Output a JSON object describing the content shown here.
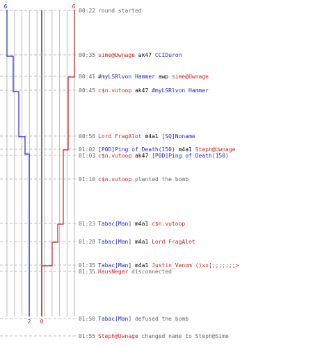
{
  "colors": {
    "ct": "#2222cc",
    "t": "#cc2222",
    "grey": "#666666",
    "black": "#000000",
    "time": "#666666",
    "grid": "#bbbbbb",
    "dash": "#bbbbbb",
    "axis": "#444444"
  },
  "scoreboard": {
    "ct_start": "6",
    "t_start": "6",
    "ct_end": "2",
    "t_end": "0"
  },
  "timeline": [
    {
      "time": "00:22",
      "parts": [
        {
          "t": "round started",
          "c": "grey"
        }
      ]
    },
    {
      "time": "00:35",
      "parts": [
        {
          "t": "sime@Uwnage",
          "c": "t"
        },
        {
          "t": " ak47 ",
          "c": "black"
        },
        {
          "t": "CCIDuron",
          "c": "ct"
        }
      ]
    },
    {
      "time": "00:41",
      "parts": [
        {
          "t": "#myLSRlvon Hammer",
          "c": "ct"
        },
        {
          "t": " awp ",
          "c": "black"
        },
        {
          "t": "sime@Uwnage",
          "c": "t"
        }
      ]
    },
    {
      "time": "00:45",
      "parts": [
        {
          "t": "c$n.vutoop",
          "c": "t"
        },
        {
          "t": " ak47 ",
          "c": "black"
        },
        {
          "t": "#myLSRlvon Hammer",
          "c": "ct"
        }
      ]
    },
    {
      "time": "00:58",
      "parts": [
        {
          "t": "Lord FragAlot",
          "c": "t"
        },
        {
          "t": " m4a1 ",
          "c": "black"
        },
        {
          "t": "[SQ]Noname",
          "c": "ct"
        }
      ]
    },
    {
      "time": "01:02",
      "parts": [
        {
          "t": "[P0D]Ping of Death(150)",
          "c": "ct"
        },
        {
          "t": " m4a1 ",
          "c": "black"
        },
        {
          "t": "Steph@Uwnage",
          "c": "t"
        }
      ]
    },
    {
      "time": "01:03",
      "parts": [
        {
          "t": "c$n.vutoop",
          "c": "t"
        },
        {
          "t": " ak47 ",
          "c": "black"
        },
        {
          "t": "[P0D]Ping of Death(150)",
          "c": "ct"
        }
      ]
    },
    {
      "time": "01:10",
      "parts": [
        {
          "t": "c$n.vutoop",
          "c": "t"
        },
        {
          "t": " planted the bomb",
          "c": "grey"
        }
      ]
    },
    {
      "time": "01:23",
      "parts": [
        {
          "t": "Tabac[Man]",
          "c": "ct"
        },
        {
          "t": " m4a1 ",
          "c": "black"
        },
        {
          "t": "c$n.vutoop",
          "c": "t"
        }
      ]
    },
    {
      "time": "01:28",
      "parts": [
        {
          "t": "Tabac[Man]",
          "c": "ct"
        },
        {
          "t": " m4a1 ",
          "c": "black"
        },
        {
          "t": "Lord FragAlot",
          "c": "t"
        }
      ]
    },
    {
      "time": "01:35",
      "parts": [
        {
          "t": "Tabac[Man]",
          "c": "ct"
        },
        {
          "t": " m4a1 ",
          "c": "black"
        },
        {
          "t": "Justin_Venom ()xx[;;;;;;;>",
          "c": "t"
        }
      ]
    },
    {
      "time": "01:35",
      "parts": [
        {
          "t": "HausNeger",
          "c": "t"
        },
        {
          "t": " disconnected",
          "c": "grey"
        }
      ]
    },
    {
      "time": "01:50",
      "parts": [
        {
          "t": "Tabac[Man]",
          "c": "ct"
        },
        {
          "t": " defused the bomb",
          "c": "grey"
        }
      ]
    },
    {
      "time": "01:55",
      "parts": [
        {
          "t": "Steph@Uwnage",
          "c": "t"
        },
        {
          "t": " changed name to Steph@Sime",
          "c": "grey"
        }
      ]
    }
  ]
}
